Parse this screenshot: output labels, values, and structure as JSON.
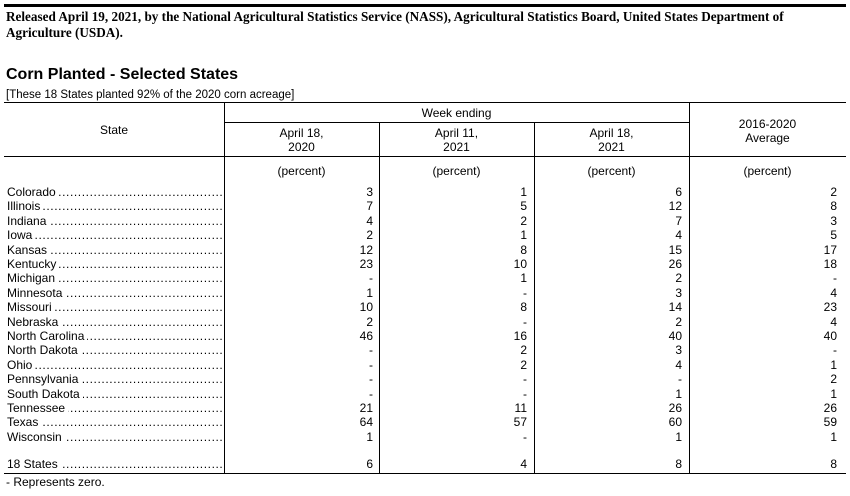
{
  "release_line": "Released April 19, 2021, by the National Agricultural Statistics Service (NASS), Agricultural Statistics Board, United States Department of Agriculture (USDA).",
  "table": {
    "title": "Corn Planted - Selected States",
    "subtitle": "[These 18 States planted 92% of the 2020 corn acreage]",
    "header": {
      "state": "State",
      "week_ending": "Week ending",
      "col1_line1": "April 18,",
      "col1_line2": "2020",
      "col2_line1": "April 11,",
      "col2_line2": "2021",
      "col3_line1": "April 18,",
      "col3_line2": "2021",
      "col4_line1": "2016-2020",
      "col4_line2": "Average"
    },
    "units": [
      "(percent)",
      "(percent)",
      "(percent)",
      "(percent)"
    ],
    "rows": [
      {
        "state": "Colorado",
        "v": [
          "3",
          "1",
          "6",
          "2"
        ]
      },
      {
        "state": "Illinois",
        "v": [
          "7",
          "5",
          "12",
          "8"
        ]
      },
      {
        "state": "Indiana",
        "v": [
          "4",
          "2",
          "7",
          "3"
        ]
      },
      {
        "state": "Iowa",
        "v": [
          "2",
          "1",
          "4",
          "5"
        ]
      },
      {
        "state": "Kansas",
        "v": [
          "12",
          "8",
          "15",
          "17"
        ]
      },
      {
        "state": "Kentucky",
        "v": [
          "23",
          "10",
          "26",
          "18"
        ]
      },
      {
        "state": "Michigan",
        "v": [
          "-",
          "1",
          "2",
          "-"
        ]
      },
      {
        "state": "Minnesota",
        "v": [
          "1",
          "-",
          "3",
          "4"
        ]
      },
      {
        "state": "Missouri",
        "v": [
          "10",
          "8",
          "14",
          "23"
        ]
      },
      {
        "state": "Nebraska",
        "v": [
          "2",
          "-",
          "2",
          "4"
        ]
      },
      {
        "state": "North Carolina",
        "v": [
          "46",
          "16",
          "40",
          "40"
        ]
      },
      {
        "state": "North Dakota",
        "v": [
          "-",
          "2",
          "3",
          "-"
        ]
      },
      {
        "state": "Ohio",
        "v": [
          "-",
          "2",
          "4",
          "1"
        ]
      },
      {
        "state": "Pennsylvania",
        "v": [
          "-",
          "-",
          "-",
          "2"
        ]
      },
      {
        "state": "South Dakota",
        "v": [
          "-",
          "-",
          "1",
          "1"
        ]
      },
      {
        "state": "Tennessee",
        "v": [
          "21",
          "11",
          "26",
          "26"
        ]
      },
      {
        "state": "Texas",
        "v": [
          "64",
          "57",
          "60",
          "59"
        ]
      },
      {
        "state": "Wisconsin",
        "v": [
          "1",
          "-",
          "1",
          "1"
        ]
      }
    ],
    "total": {
      "state": "18 States",
      "v": [
        "6",
        "4",
        "8",
        "8"
      ]
    },
    "footnote": "- Represents zero."
  }
}
